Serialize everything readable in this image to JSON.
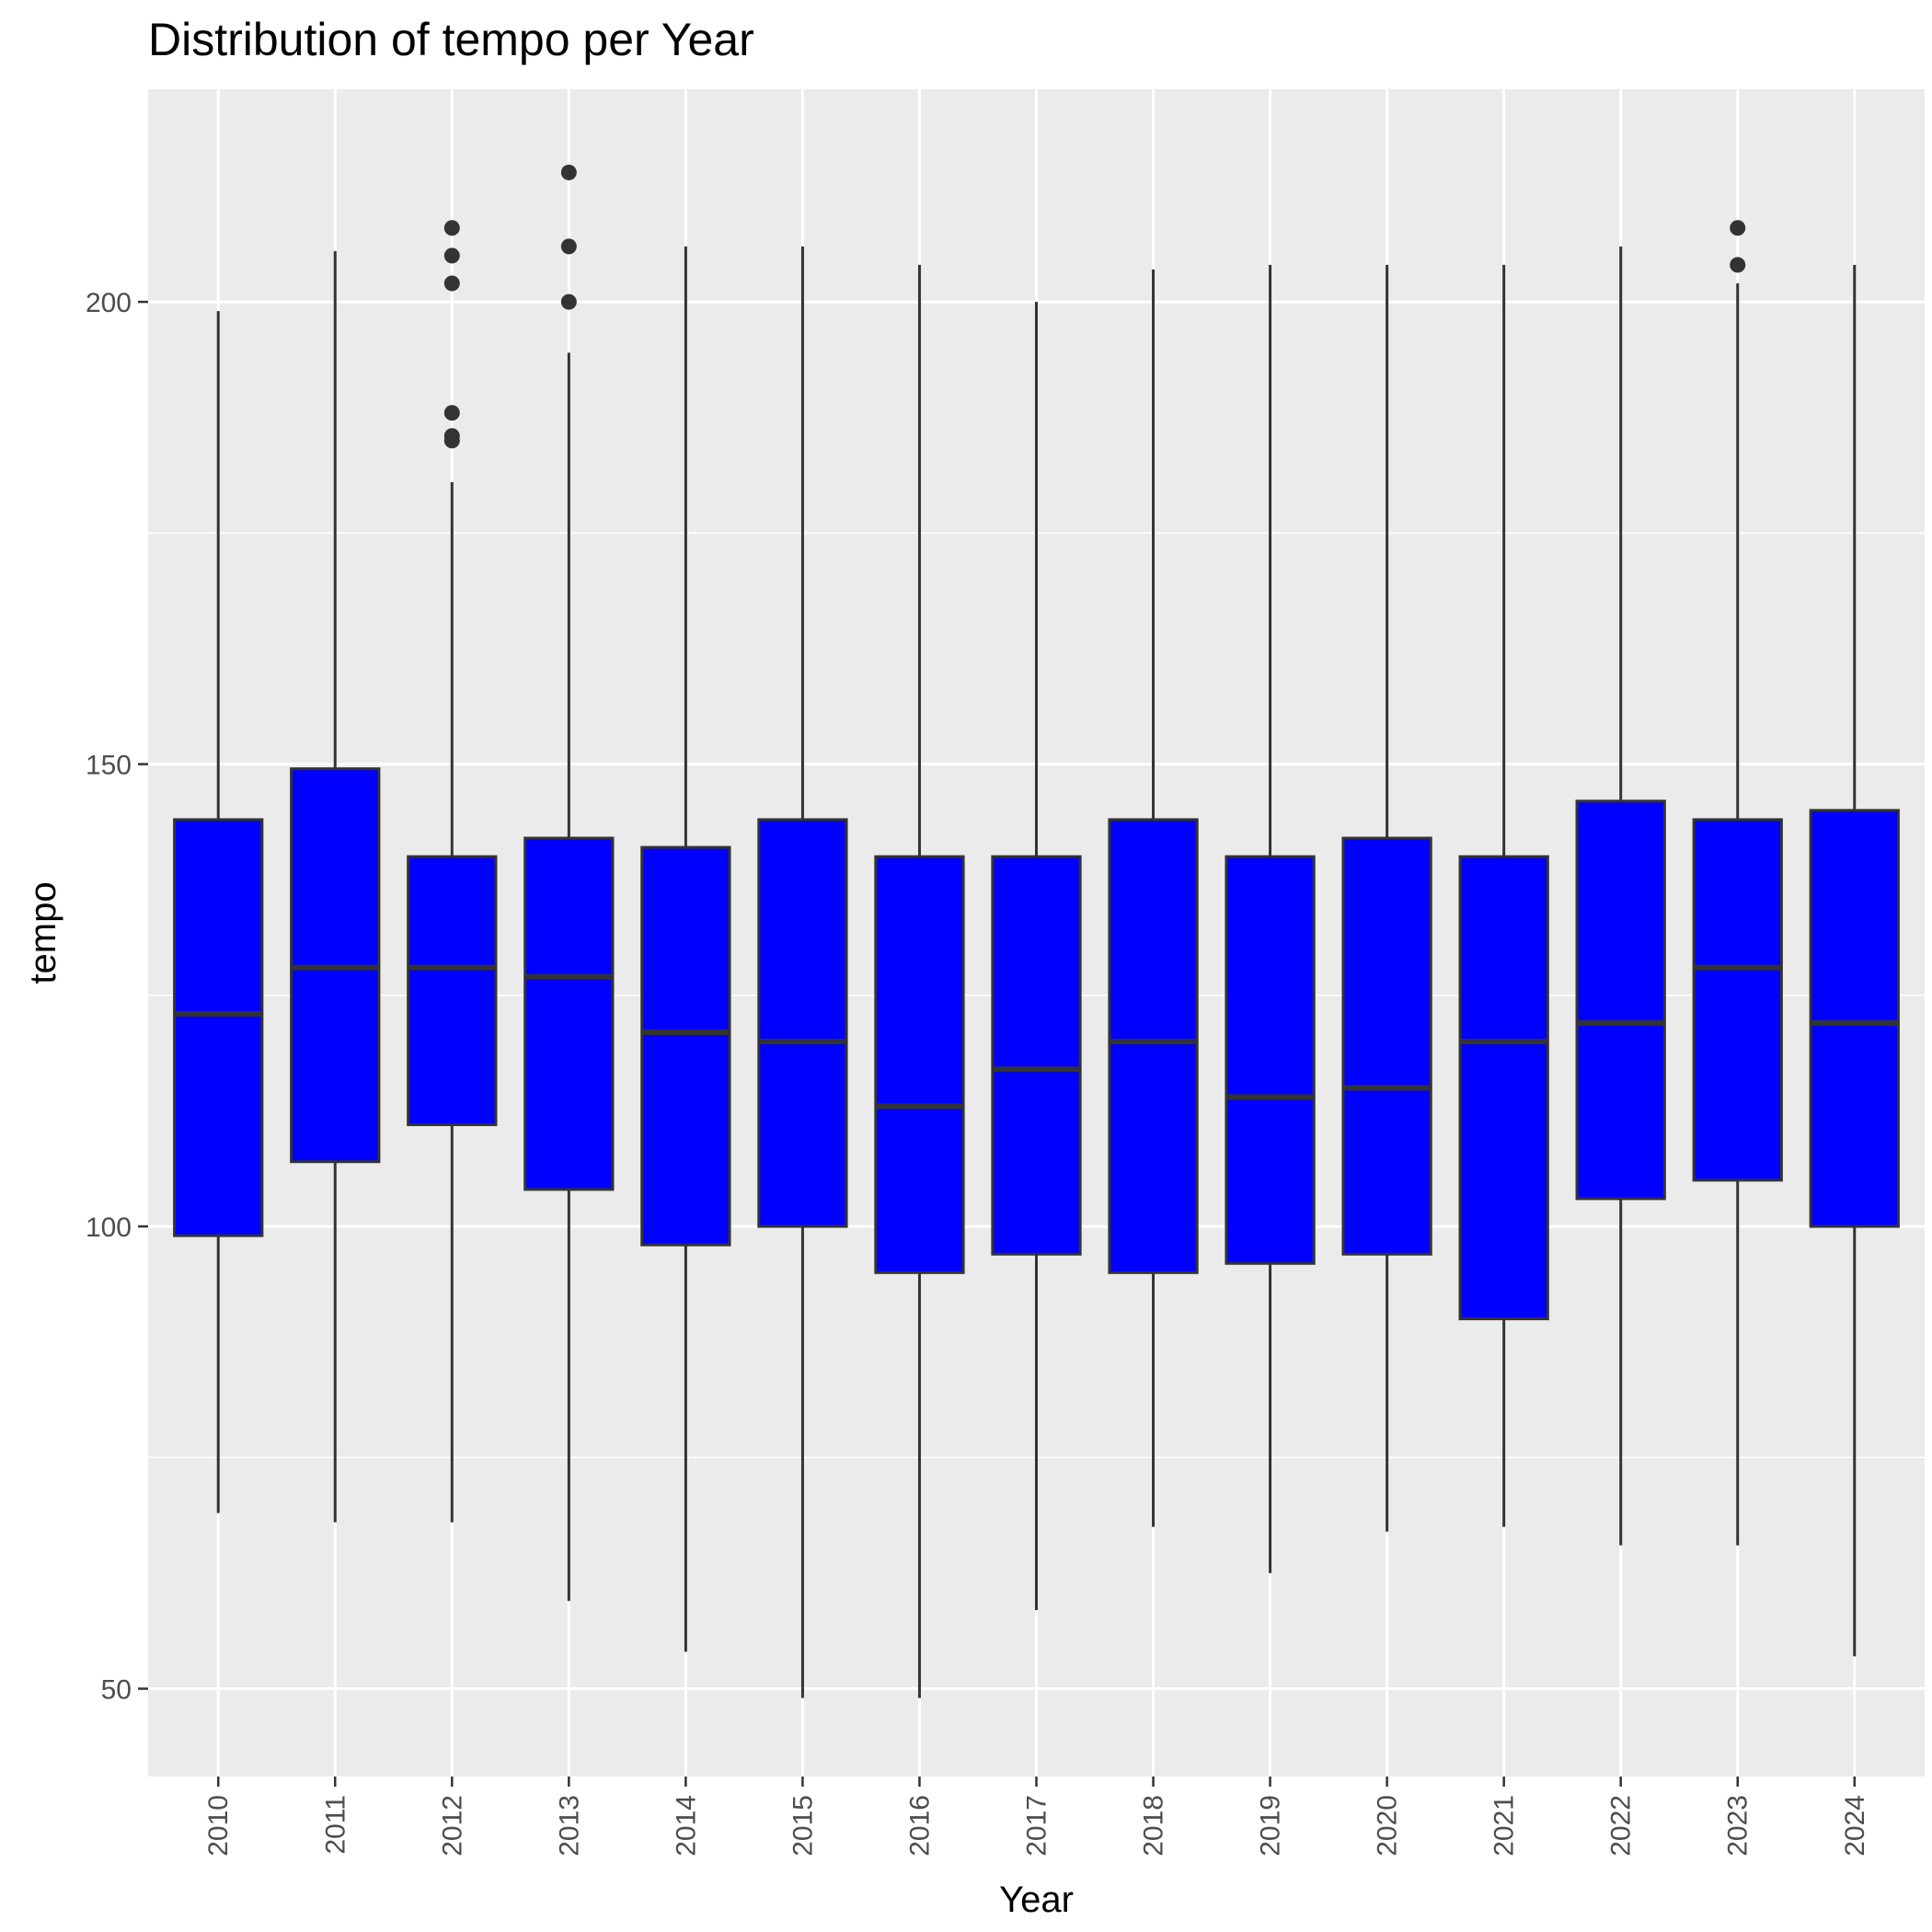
{
  "chart_data": {
    "type": "boxplot",
    "title": "Distribution of tempo per Year",
    "xlabel": "Year",
    "ylabel": "tempo",
    "ylim": [
      40.5,
      223
    ],
    "y_major_ticks": [
      50,
      100,
      150,
      200
    ],
    "y_minor_ticks": [
      75,
      125,
      175
    ],
    "grid": true,
    "box_fill": "#0000ff",
    "line_color": "#333333",
    "panel_background": "#ebebeb",
    "categories": [
      "2010",
      "2011",
      "2012",
      "2013",
      "2014",
      "2015",
      "2016",
      "2017",
      "2018",
      "2019",
      "2020",
      "2021",
      "2022",
      "2023",
      "2024"
    ],
    "boxes": [
      {
        "x": "2010",
        "whisker_low": 69,
        "q1": 99,
        "median": 123,
        "q3": 144,
        "whisker_high": 199,
        "outliers": []
      },
      {
        "x": "2011",
        "whisker_low": 68,
        "q1": 107,
        "median": 128,
        "q3": 149.5,
        "whisker_high": 205.5,
        "outliers": []
      },
      {
        "x": "2012",
        "whisker_low": 68,
        "q1": 111,
        "median": 128,
        "q3": 140,
        "whisker_high": 180.5,
        "outliers": [
          185,
          185.5,
          188,
          202,
          205,
          208
        ]
      },
      {
        "x": "2013",
        "whisker_low": 59.5,
        "q1": 104,
        "median": 127,
        "q3": 142,
        "whisker_high": 194.5,
        "outliers": [
          200,
          206,
          214
        ]
      },
      {
        "x": "2014",
        "whisker_low": 54,
        "q1": 98,
        "median": 121,
        "q3": 141,
        "whisker_high": 206,
        "outliers": []
      },
      {
        "x": "2015",
        "whisker_low": 49,
        "q1": 100,
        "median": 120,
        "q3": 144,
        "whisker_high": 206,
        "outliers": []
      },
      {
        "x": "2016",
        "whisker_low": 49,
        "q1": 95,
        "median": 113,
        "q3": 140,
        "whisker_high": 204,
        "outliers": []
      },
      {
        "x": "2017",
        "whisker_low": 58.5,
        "q1": 97,
        "median": 117,
        "q3": 140,
        "whisker_high": 200,
        "outliers": []
      },
      {
        "x": "2018",
        "whisker_low": 67.5,
        "q1": 95,
        "median": 120,
        "q3": 144,
        "whisker_high": 203.5,
        "outliers": []
      },
      {
        "x": "2019",
        "whisker_low": 62.5,
        "q1": 96,
        "median": 114,
        "q3": 140,
        "whisker_high": 204,
        "outliers": []
      },
      {
        "x": "2020",
        "whisker_low": 67,
        "q1": 97,
        "median": 115,
        "q3": 142,
        "whisker_high": 204,
        "outliers": []
      },
      {
        "x": "2021",
        "whisker_low": 67.5,
        "q1": 90,
        "median": 120,
        "q3": 140,
        "whisker_high": 204,
        "outliers": []
      },
      {
        "x": "2022",
        "whisker_low": 65.5,
        "q1": 103,
        "median": 122,
        "q3": 146,
        "whisker_high": 206,
        "outliers": []
      },
      {
        "x": "2023",
        "whisker_low": 65.5,
        "q1": 105,
        "median": 128,
        "q3": 144,
        "whisker_high": 202,
        "outliers": [
          204,
          208
        ]
      },
      {
        "x": "2024",
        "whisker_low": 53.5,
        "q1": 100,
        "median": 122,
        "q3": 145,
        "whisker_high": 204,
        "outliers": []
      }
    ]
  }
}
